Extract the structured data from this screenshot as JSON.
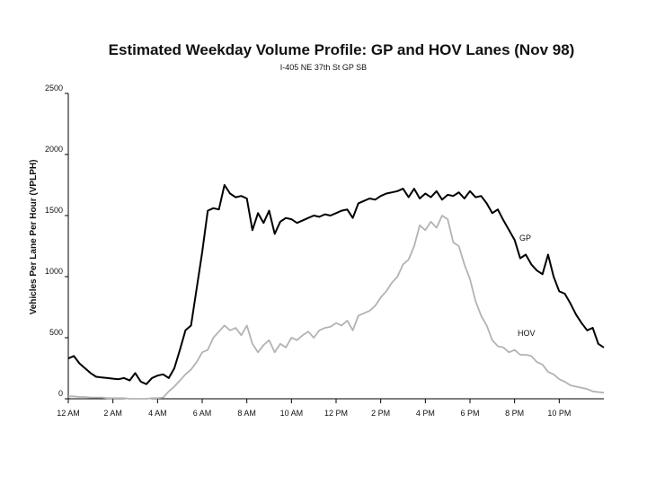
{
  "chart_data": {
    "type": "line",
    "title": "Estimated Weekday Volume Profile:  GP and HOV Lanes (Nov 98)",
    "subtitle": "I-405 NE 37th St   GP SB",
    "xlabel": "",
    "ylabel": "Vehicles Per Lane Per Hour (VPLPH)",
    "ylim": [
      0,
      2500
    ],
    "yticks": [
      0,
      500,
      1000,
      1500,
      2000,
      2500
    ],
    "xlim": [
      0,
      24
    ],
    "xticks": [
      0,
      2,
      4,
      6,
      8,
      10,
      12,
      14,
      16,
      18,
      20,
      22
    ],
    "xtick_labels": [
      "12 AM",
      "2 AM",
      "4 AM",
      "6 AM",
      "8 AM",
      "10 AM",
      "12 PM",
      "2 PM",
      "4 PM",
      "6 PM",
      "8 PM",
      "10 PM"
    ],
    "grid": false,
    "series": [
      {
        "name": "GP",
        "label": "GP",
        "color": "#000000",
        "x": [
          0,
          0.25,
          0.5,
          0.75,
          1.0,
          1.25,
          1.5,
          1.75,
          2.0,
          2.25,
          2.5,
          2.75,
          3.0,
          3.25,
          3.5,
          3.75,
          4.0,
          4.25,
          4.5,
          4.75,
          5.0,
          5.25,
          5.5,
          5.75,
          6.0,
          6.25,
          6.5,
          6.75,
          7.0,
          7.25,
          7.5,
          7.75,
          8.0,
          8.25,
          8.5,
          8.75,
          9.0,
          9.25,
          9.5,
          9.75,
          10.0,
          10.25,
          10.5,
          10.75,
          11.0,
          11.25,
          11.5,
          11.75,
          12.0,
          12.25,
          12.5,
          12.75,
          13.0,
          13.25,
          13.5,
          13.75,
          14.0,
          14.25,
          14.5,
          14.75,
          15.0,
          15.25,
          15.5,
          15.75,
          16.0,
          16.25,
          16.5,
          16.75,
          17.0,
          17.25,
          17.5,
          17.75,
          18.0,
          18.25,
          18.5,
          18.75,
          19.0,
          19.25,
          19.5,
          19.75,
          20.0,
          20.25,
          20.5,
          20.75,
          21.0,
          21.25,
          21.5,
          21.75,
          22.0,
          22.25,
          22.5,
          22.75,
          23.0,
          23.25,
          23.5,
          23.75,
          24.0
        ],
        "values": [
          330,
          350,
          290,
          250,
          210,
          180,
          175,
          170,
          165,
          160,
          170,
          150,
          210,
          140,
          120,
          170,
          190,
          200,
          170,
          250,
          400,
          560,
          600,
          900,
          1200,
          1540,
          1560,
          1550,
          1750,
          1680,
          1650,
          1660,
          1640,
          1380,
          1520,
          1440,
          1540,
          1350,
          1450,
          1480,
          1470,
          1440,
          1460,
          1480,
          1500,
          1490,
          1510,
          1500,
          1520,
          1540,
          1550,
          1480,
          1600,
          1620,
          1640,
          1630,
          1660,
          1680,
          1690,
          1700,
          1720,
          1650,
          1720,
          1640,
          1680,
          1650,
          1700,
          1630,
          1670,
          1660,
          1690,
          1640,
          1700,
          1650,
          1660,
          1600,
          1520,
          1550,
          1460,
          1380,
          1300,
          1150,
          1180,
          1100,
          1050,
          1020,
          1180,
          1000,
          880,
          860,
          780,
          690,
          620,
          560,
          580,
          450,
          420
        ]
      },
      {
        "name": "HOV",
        "label": "HOV",
        "color": "#b3b3b3",
        "x": [
          0,
          0.25,
          0.5,
          0.75,
          1.0,
          1.25,
          1.5,
          1.75,
          2.0,
          2.25,
          2.5,
          2.75,
          3.0,
          3.25,
          3.5,
          3.75,
          4.0,
          4.25,
          4.5,
          4.75,
          5.0,
          5.25,
          5.5,
          5.75,
          6.0,
          6.25,
          6.5,
          6.75,
          7.0,
          7.25,
          7.5,
          7.75,
          8.0,
          8.25,
          8.5,
          8.75,
          9.0,
          9.25,
          9.5,
          9.75,
          10.0,
          10.25,
          10.5,
          10.75,
          11.0,
          11.25,
          11.5,
          11.75,
          12.0,
          12.25,
          12.5,
          12.75,
          13.0,
          13.25,
          13.5,
          13.75,
          14.0,
          14.25,
          14.5,
          14.75,
          15.0,
          15.25,
          15.5,
          15.75,
          16.0,
          16.25,
          16.5,
          16.75,
          17.0,
          17.25,
          17.5,
          17.75,
          18.0,
          18.25,
          18.5,
          18.75,
          19.0,
          19.25,
          19.5,
          19.75,
          20.0,
          20.25,
          20.5,
          20.75,
          21.0,
          21.25,
          21.5,
          21.75,
          22.0,
          22.25,
          22.5,
          22.75,
          23.0,
          23.25,
          23.5,
          23.75,
          24.0
        ],
        "values": [
          20,
          20,
          15,
          15,
          10,
          10,
          10,
          5,
          5,
          5,
          5,
          0,
          0,
          0,
          0,
          5,
          5,
          10,
          60,
          100,
          150,
          200,
          240,
          300,
          380,
          400,
          500,
          550,
          600,
          560,
          580,
          520,
          600,
          450,
          380,
          440,
          480,
          380,
          450,
          420,
          500,
          480,
          520,
          550,
          500,
          560,
          580,
          590,
          620,
          600,
          640,
          560,
          680,
          700,
          720,
          760,
          830,
          880,
          950,
          1000,
          1100,
          1140,
          1250,
          1420,
          1380,
          1450,
          1400,
          1500,
          1470,
          1280,
          1250,
          1100,
          980,
          800,
          680,
          600,
          480,
          430,
          420,
          380,
          400,
          360,
          360,
          350,
          300,
          280,
          220,
          200,
          160,
          140,
          110,
          100,
          90,
          80,
          60,
          55,
          50
        ]
      }
    ]
  }
}
